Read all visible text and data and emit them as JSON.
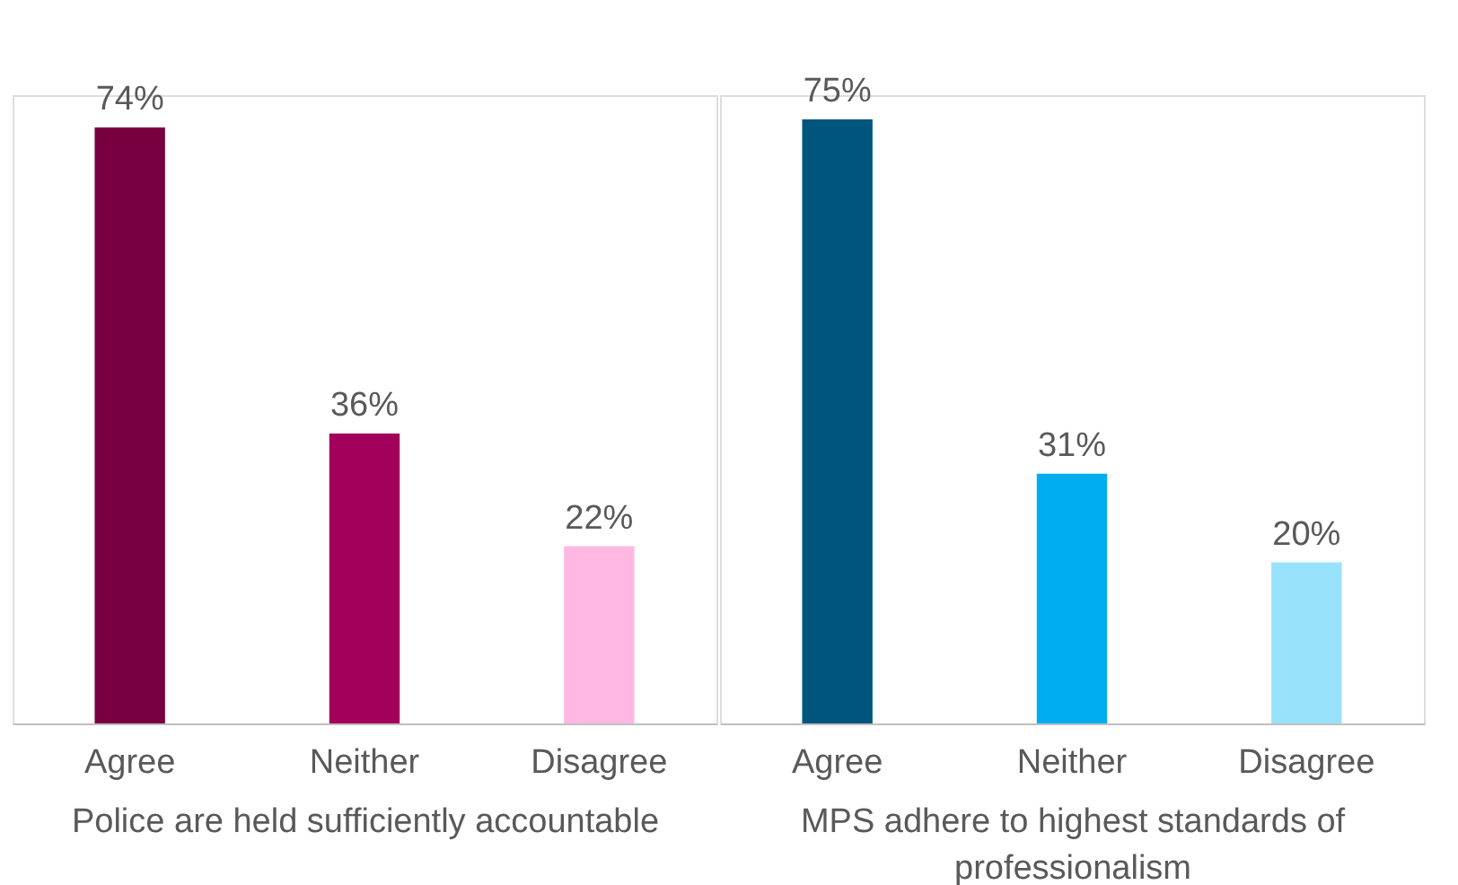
{
  "chart_data": [
    {
      "type": "bar",
      "categories": [
        "Agree",
        "Neither",
        "Disagree"
      ],
      "values": [
        74,
        36,
        22
      ],
      "colors": [
        "#780040",
        "#a3005c",
        "#ffb8e2"
      ],
      "value_labels": [
        "74%",
        "36%",
        "22%"
      ],
      "xlabel": "Police are held sufficiently accountable",
      "ylim": [
        0,
        78
      ],
      "tick_labels": "x",
      "grid": false
    },
    {
      "type": "bar",
      "categories": [
        "Agree",
        "Neither",
        "Disagree"
      ],
      "values": [
        75,
        31,
        20
      ],
      "colors": [
        "#00557f",
        "#00aeef",
        "#99e2fb"
      ],
      "value_labels": [
        "75%",
        "31%",
        "20%"
      ],
      "xlabel": "MPS adhere to highest standards of professionalism",
      "ylim": [
        0,
        78
      ],
      "tick_labels": "x",
      "grid": false
    }
  ]
}
